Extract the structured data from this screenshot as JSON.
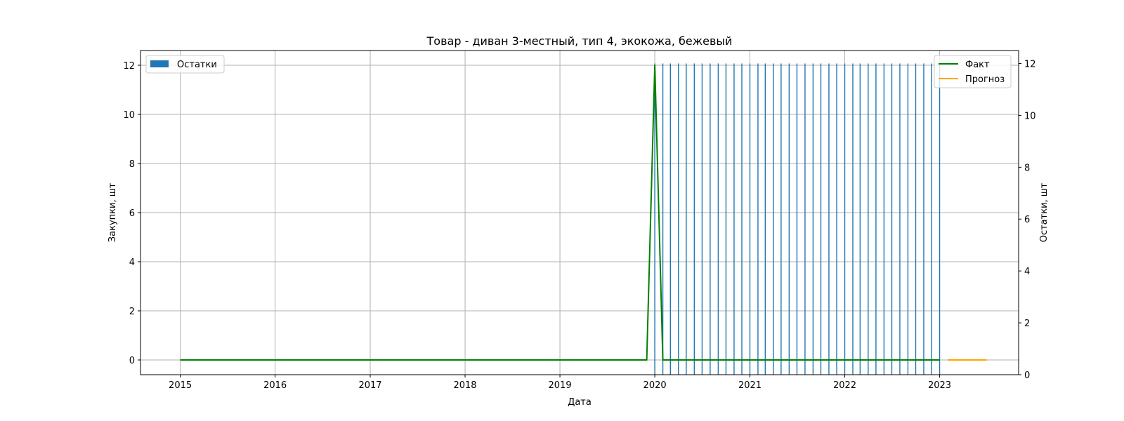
{
  "chart_data": {
    "type": "line",
    "title": "Товар - диван 3-местный, тип 4, экокожа, бежевый",
    "xlabel": "Дата",
    "ylabel_left": "Закупки, шт",
    "ylabel_right": "Остатки, шт",
    "xlim": [
      "2014-08-01",
      "2023-11-01"
    ],
    "x_ticks": [
      "2015",
      "2016",
      "2017",
      "2018",
      "2019",
      "2020",
      "2021",
      "2022",
      "2023"
    ],
    "ylim_left": [
      -0.6,
      12.6
    ],
    "y_ticks_left": [
      0,
      2,
      4,
      6,
      8,
      10,
      12
    ],
    "ylim_right": [
      0,
      12.5
    ],
    "y_ticks_right": [
      0,
      2,
      4,
      6,
      8,
      10,
      12
    ],
    "grid": true,
    "legend_left_placement": "top-left",
    "legend_right_placement": "top-right",
    "series": [
      {
        "name": "Факт",
        "kind": "line",
        "axis": "left",
        "color": "#008000",
        "points": [
          [
            "2015-01-01",
            0
          ],
          [
            "2019-12-01",
            0
          ],
          [
            "2020-01-01",
            12
          ],
          [
            "2020-02-01",
            0
          ],
          [
            "2023-01-01",
            0
          ]
        ]
      },
      {
        "name": "Прогноз",
        "kind": "line",
        "axis": "left",
        "color": "#ffa500",
        "points": [
          [
            "2023-02-01",
            0
          ],
          [
            "2023-07-01",
            0
          ]
        ]
      },
      {
        "name": "Остатки",
        "kind": "bar",
        "axis": "right",
        "color": "#1f77b4",
        "x": [
          "2020-01-01",
          "2020-02-01",
          "2020-03-01",
          "2020-04-01",
          "2020-05-01",
          "2020-06-01",
          "2020-07-01",
          "2020-08-01",
          "2020-09-01",
          "2020-10-01",
          "2020-11-01",
          "2020-12-01",
          "2021-01-01",
          "2021-02-01",
          "2021-03-01",
          "2021-04-01",
          "2021-05-01",
          "2021-06-01",
          "2021-07-01",
          "2021-08-01",
          "2021-09-01",
          "2021-10-01",
          "2021-11-01",
          "2021-12-01",
          "2022-01-01",
          "2022-02-01",
          "2022-03-01",
          "2022-04-01",
          "2022-05-01",
          "2022-06-01",
          "2022-07-01",
          "2022-08-01",
          "2022-09-01",
          "2022-10-01",
          "2022-11-01",
          "2022-12-01",
          "2023-01-01"
        ],
        "values": [
          12,
          12,
          12,
          12,
          12,
          12,
          12,
          12,
          12,
          12,
          12,
          12,
          12,
          12,
          12,
          12,
          12,
          12,
          12,
          12,
          12,
          12,
          12,
          12,
          12,
          12,
          12,
          12,
          12,
          12,
          12,
          12,
          12,
          12,
          12,
          12,
          12
        ]
      }
    ]
  }
}
